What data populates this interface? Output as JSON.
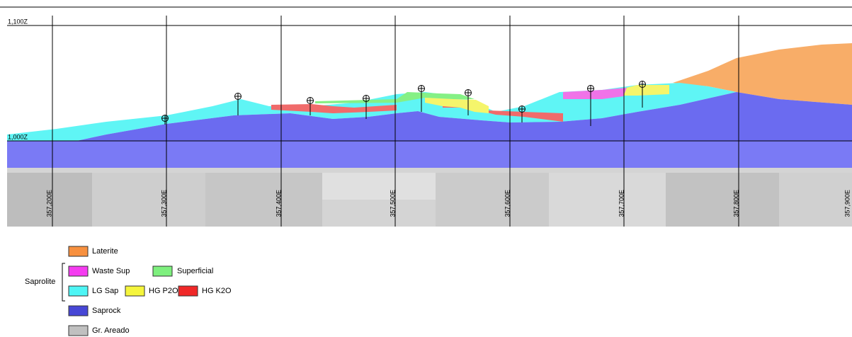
{
  "section": {
    "elevations": [
      "1,100Z",
      "1,000Z"
    ],
    "eastings": [
      "357,200E",
      "357,300E",
      "357,400E",
      "357,500E",
      "357,600E",
      "357,700E",
      "357,800E",
      "357,900E"
    ]
  },
  "legend": {
    "group": "Saprolite",
    "items": [
      "Laterite",
      "Waste Sup",
      "Superficial",
      "LG Sap",
      "HG P2O5",
      "HG K2O",
      "Saprock",
      "Gr. Areado"
    ]
  }
}
